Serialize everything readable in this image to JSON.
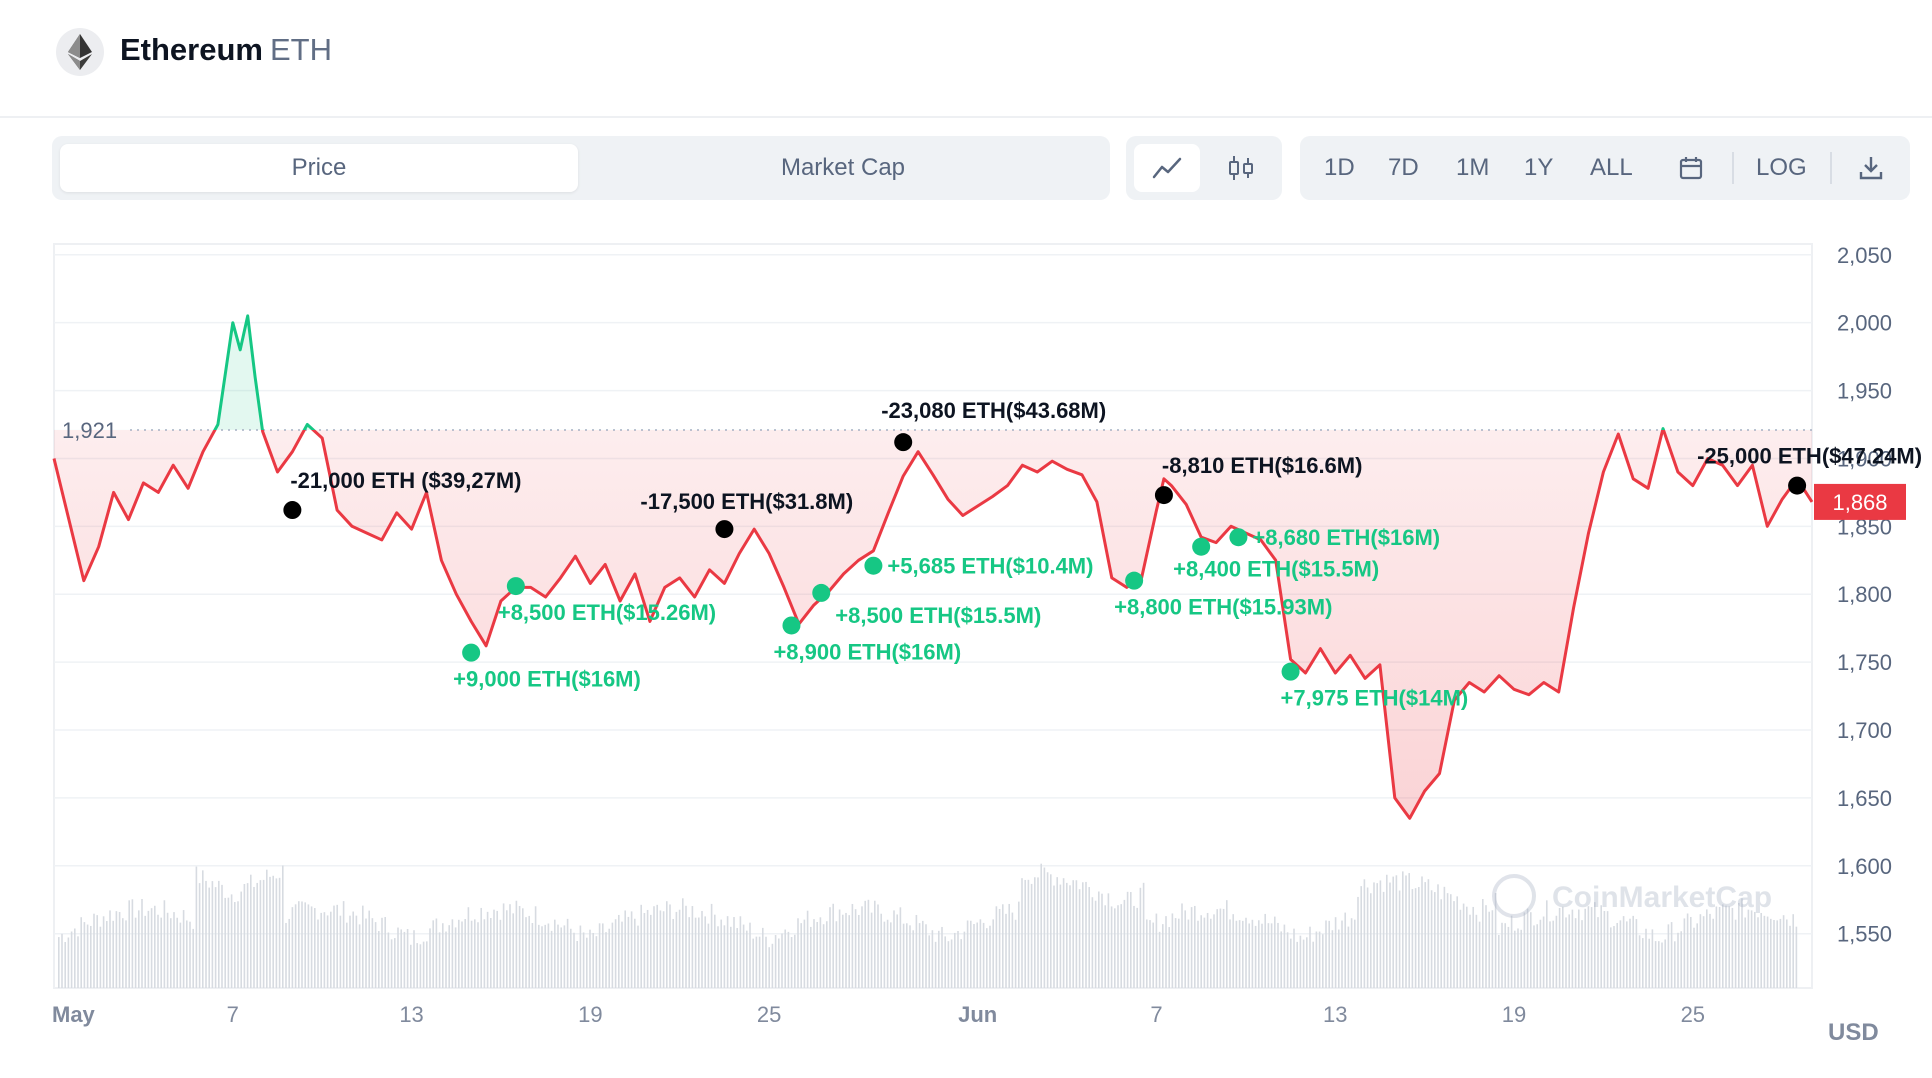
{
  "header": {
    "name": "Ethereum",
    "symbol": "ETH"
  },
  "toggle": {
    "tabs": [
      {
        "label": "Price",
        "active": true
      },
      {
        "label": "Market Cap",
        "active": false
      }
    ]
  },
  "chart_type": {
    "options": [
      {
        "icon": "line-chart-icon",
        "active": true
      },
      {
        "icon": "candlestick-icon",
        "active": false
      }
    ]
  },
  "ranges": [
    "1D",
    "7D",
    "1M",
    "1Y",
    "ALL"
  ],
  "calendar_icon": "calendar-icon",
  "log_label": "LOG",
  "download_icon": "download-icon",
  "currency": "USD",
  "watermark": "CoinMarketCap",
  "colors": {
    "up": "#16c784",
    "down": "#ea3943",
    "wallet_sell_marker": "#000000",
    "wallet_buy_marker": "#16c784"
  },
  "chart_data": {
    "type": "line",
    "title": "",
    "xlabel": "",
    "ylabel": "",
    "y_unit": "USD",
    "ylim": [
      1510,
      2055
    ],
    "yticks": [
      2050,
      2000,
      1950,
      1900,
      1850,
      1800,
      1750,
      1700,
      1650,
      1600,
      1550
    ],
    "x_range": [
      "2023-05-01",
      "2023-06-29"
    ],
    "xticks": [
      {
        "label": "May",
        "date": "2023-05-01",
        "bold": true
      },
      {
        "label": "7",
        "date": "2023-05-07"
      },
      {
        "label": "13",
        "date": "2023-05-13"
      },
      {
        "label": "19",
        "date": "2023-05-19"
      },
      {
        "label": "25",
        "date": "2023-05-25"
      },
      {
        "label": "Jun",
        "date": "2023-06-01",
        "bold": true
      },
      {
        "label": "7",
        "date": "2023-06-07"
      },
      {
        "label": "13",
        "date": "2023-06-13"
      },
      {
        "label": "19",
        "date": "2023-06-19"
      },
      {
        "label": "25",
        "date": "2023-06-25"
      }
    ],
    "reference_price": 1921,
    "current_price": 1868,
    "series": [
      {
        "values": [
          [
            "2023-05-01",
            1900
          ],
          [
            "2023-05-01T12:00",
            1855
          ],
          [
            "2023-05-02",
            1810
          ],
          [
            "2023-05-02T12:00",
            1835
          ],
          [
            "2023-05-03",
            1875
          ],
          [
            "2023-05-03T12:00",
            1855
          ],
          [
            "2023-05-04",
            1882
          ],
          [
            "2023-05-04T12:00",
            1875
          ],
          [
            "2023-05-05",
            1895
          ],
          [
            "2023-05-05T12:00",
            1878
          ],
          [
            "2023-05-06",
            1905
          ],
          [
            "2023-05-06T12:00",
            1925
          ],
          [
            "2023-05-07",
            2000
          ],
          [
            "2023-05-07T06:00",
            1980
          ],
          [
            "2023-05-07T12:00",
            2005
          ],
          [
            "2023-05-07T18:00",
            1960
          ],
          [
            "2023-05-08",
            1920
          ],
          [
            "2023-05-08T12:00",
            1890
          ],
          [
            "2023-05-09",
            1905
          ],
          [
            "2023-05-09T12:00",
            1925
          ],
          [
            "2023-05-10",
            1915
          ],
          [
            "2023-05-10T12:00",
            1862
          ],
          [
            "2023-05-11",
            1850
          ],
          [
            "2023-05-11T12:00",
            1845
          ],
          [
            "2023-05-12",
            1840
          ],
          [
            "2023-05-12T12:00",
            1860
          ],
          [
            "2023-05-13",
            1848
          ],
          [
            "2023-05-13T12:00",
            1875
          ],
          [
            "2023-05-14",
            1825
          ],
          [
            "2023-05-14T12:00",
            1800
          ],
          [
            "2023-05-15",
            1780
          ],
          [
            "2023-05-15T12:00",
            1762
          ],
          [
            "2023-05-16",
            1795
          ],
          [
            "2023-05-16T12:00",
            1805
          ],
          [
            "2023-05-17",
            1805
          ],
          [
            "2023-05-17T12:00",
            1798
          ],
          [
            "2023-05-18",
            1812
          ],
          [
            "2023-05-18T12:00",
            1828
          ],
          [
            "2023-05-19",
            1808
          ],
          [
            "2023-05-19T12:00",
            1822
          ],
          [
            "2023-05-20",
            1795
          ],
          [
            "2023-05-20T12:00",
            1815
          ],
          [
            "2023-05-21",
            1780
          ],
          [
            "2023-05-21T12:00",
            1805
          ],
          [
            "2023-05-22",
            1812
          ],
          [
            "2023-05-22T12:00",
            1798
          ],
          [
            "2023-05-23",
            1818
          ],
          [
            "2023-05-23T12:00",
            1808
          ],
          [
            "2023-05-24",
            1830
          ],
          [
            "2023-05-24T12:00",
            1848
          ],
          [
            "2023-05-25",
            1830
          ],
          [
            "2023-05-25T12:00",
            1805
          ],
          [
            "2023-05-26",
            1778
          ],
          [
            "2023-05-26T12:00",
            1792
          ],
          [
            "2023-05-27",
            1802
          ],
          [
            "2023-05-27T12:00",
            1815
          ],
          [
            "2023-05-28",
            1825
          ],
          [
            "2023-05-28T12:00",
            1832
          ],
          [
            "2023-05-29",
            1860
          ],
          [
            "2023-05-29T12:00",
            1887
          ],
          [
            "2023-05-30",
            1905
          ],
          [
            "2023-05-30T12:00",
            1888
          ],
          [
            "2023-05-31",
            1870
          ],
          [
            "2023-05-31T12:00",
            1858
          ],
          [
            "2023-06-01",
            1865
          ],
          [
            "2023-06-01T12:00",
            1872
          ],
          [
            "2023-06-02",
            1880
          ],
          [
            "2023-06-02T12:00",
            1895
          ],
          [
            "2023-06-03",
            1890
          ],
          [
            "2023-06-03T12:00",
            1898
          ],
          [
            "2023-06-04",
            1892
          ],
          [
            "2023-06-04T12:00",
            1888
          ],
          [
            "2023-06-05",
            1868
          ],
          [
            "2023-06-05T12:00",
            1812
          ],
          [
            "2023-06-06",
            1805
          ],
          [
            "2023-06-06T12:00",
            1812
          ],
          [
            "2023-06-07",
            1862
          ],
          [
            "2023-06-07T06:00",
            1885
          ],
          [
            "2023-06-07T12:00",
            1880
          ],
          [
            "2023-06-08",
            1866
          ],
          [
            "2023-06-08T12:00",
            1842
          ],
          [
            "2023-06-09",
            1838
          ],
          [
            "2023-06-09T12:00",
            1850
          ],
          [
            "2023-06-10",
            1845
          ],
          [
            "2023-06-10T12:00",
            1840
          ],
          [
            "2023-06-11",
            1825
          ],
          [
            "2023-06-11T12:00",
            1752
          ],
          [
            "2023-06-12",
            1742
          ],
          [
            "2023-06-12T12:00",
            1760
          ],
          [
            "2023-06-13",
            1742
          ],
          [
            "2023-06-13T12:00",
            1755
          ],
          [
            "2023-06-14",
            1738
          ],
          [
            "2023-06-14T12:00",
            1748
          ],
          [
            "2023-06-15",
            1650
          ],
          [
            "2023-06-15T12:00",
            1635
          ],
          [
            "2023-06-16",
            1655
          ],
          [
            "2023-06-16T12:00",
            1668
          ],
          [
            "2023-06-17",
            1722
          ],
          [
            "2023-06-17T12:00",
            1735
          ],
          [
            "2023-06-18",
            1728
          ],
          [
            "2023-06-18T12:00",
            1740
          ],
          [
            "2023-06-19",
            1730
          ],
          [
            "2023-06-19T12:00",
            1726
          ],
          [
            "2023-06-20",
            1735
          ],
          [
            "2023-06-20T12:00",
            1728
          ],
          [
            "2023-06-21",
            1790
          ],
          [
            "2023-06-21T12:00",
            1845
          ],
          [
            "2023-06-22",
            1890
          ],
          [
            "2023-06-22T12:00",
            1918
          ],
          [
            "2023-06-23",
            1885
          ],
          [
            "2023-06-23T12:00",
            1878
          ],
          [
            "2023-06-24",
            1922
          ],
          [
            "2023-06-24T12:00",
            1890
          ],
          [
            "2023-06-25",
            1880
          ],
          [
            "2023-06-25T12:00",
            1900
          ],
          [
            "2023-06-26",
            1895
          ],
          [
            "2023-06-26T12:00",
            1880
          ],
          [
            "2023-06-27",
            1895
          ],
          [
            "2023-06-27T12:00",
            1850
          ],
          [
            "2023-06-28",
            1870
          ],
          [
            "2023-06-28T12:00",
            1885
          ],
          [
            "2023-06-29",
            1868
          ]
        ]
      }
    ],
    "annotations": [
      {
        "text": "-21,000 ETH ($39,27M)",
        "date": "2023-05-09",
        "price": 1862,
        "side": "sell"
      },
      {
        "text": "+9,000 ETH($16M)",
        "date": "2023-05-15",
        "price": 1757,
        "side": "buy"
      },
      {
        "text": "+8,500 ETH($15.26M)",
        "date": "2023-05-16T12:00",
        "price": 1806,
        "side": "buy"
      },
      {
        "text": "-17,500 ETH($31.8M)",
        "date": "2023-05-23T12:00",
        "price": 1848,
        "side": "sell"
      },
      {
        "text": "+8,900 ETH($16M)",
        "date": "2023-05-25T18:00",
        "price": 1777,
        "side": "buy"
      },
      {
        "text": "+8,500 ETH($15.5M)",
        "date": "2023-05-26T18:00",
        "price": 1801,
        "side": "buy"
      },
      {
        "text": "+5,685 ETH($10.4M)",
        "date": "2023-05-28T12:00",
        "price": 1821,
        "side": "buy"
      },
      {
        "text": "-23,080 ETH($43.68M)",
        "date": "2023-05-29T12:00",
        "price": 1912,
        "side": "sell"
      },
      {
        "text": "+8,800 ETH($15.93M)",
        "date": "2023-06-06T06:00",
        "price": 1810,
        "side": "buy"
      },
      {
        "text": "-8,810 ETH($16.6M)",
        "date": "2023-06-07T06:00",
        "price": 1873,
        "side": "sell"
      },
      {
        "text": "+8,400 ETH($15.5M)",
        "date": "2023-06-08T12:00",
        "price": 1835,
        "side": "buy"
      },
      {
        "text": "+8,680 ETH($16M)",
        "date": "2023-06-09T18:00",
        "price": 1842,
        "side": "buy"
      },
      {
        "text": "+7,975 ETH($14M)",
        "date": "2023-06-11T12:00",
        "price": 1743,
        "side": "buy"
      },
      {
        "text": "-25,000 ETH($47.24M)",
        "date": "2023-06-28T12:00",
        "price": 1880,
        "side": "sell"
      }
    ],
    "volume": "shown as grey bars along the bottom, unlabeled"
  }
}
